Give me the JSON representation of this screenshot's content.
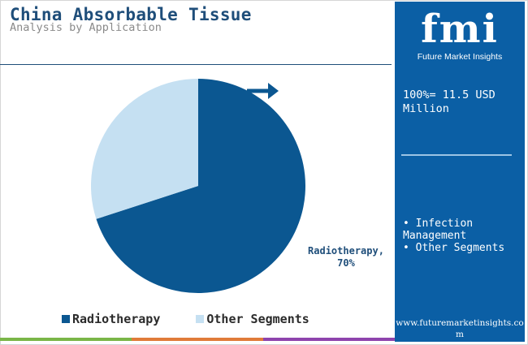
{
  "header": {
    "title": "China Absorbable Tissue",
    "subtitle": "Analysis by Application"
  },
  "chart_data": {
    "type": "pie",
    "title": "China Absorbable Tissue",
    "subtitle": "Analysis by Application",
    "categories": [
      "Radiotherapy",
      "Other Segments"
    ],
    "values": [
      70,
      30
    ],
    "colors": [
      "#0b5791",
      "#c5e0f2"
    ],
    "data_labels": [
      {
        "text": "Radiotherapy,",
        "value_text": "70%"
      }
    ],
    "legend_position": "bottom"
  },
  "legend": {
    "items": [
      {
        "label": "Radiotherapy",
        "color": "#0b5791"
      },
      {
        "label": "Other Segments",
        "color": "#c5e0f2"
      }
    ]
  },
  "side_panel": {
    "logo_text": "fmi",
    "logo_subtitle": "Future Market Insights",
    "total_text": "100%= 11.5 USD Million",
    "list_items": [
      "• Infection Management",
      "• Other Segments"
    ],
    "website": "www.futuremarketinsights.com"
  },
  "colors": {
    "panel_bg": "#0b5fa5",
    "title": "#1f4e7a",
    "arrow": "#0b5791",
    "bottom_bar": [
      "#7ab648",
      "#e07b39",
      "#8e44ad"
    ]
  },
  "icons": [
    "arrow-right-icon"
  ]
}
